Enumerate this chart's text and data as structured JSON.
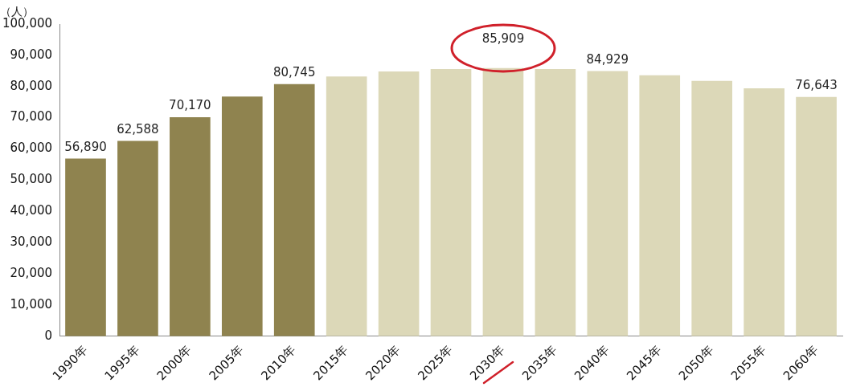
{
  "chart_data": {
    "type": "bar",
    "ylabel": "（人）",
    "categories": [
      "1990年",
      "1995年",
      "2000年",
      "2005年",
      "2010年",
      "2015年",
      "2020年",
      "2025年",
      "2030年",
      "2035年",
      "2040年",
      "2045年",
      "2050年",
      "2055年",
      "2060年"
    ],
    "values": [
      56890,
      62588,
      70170,
      76800,
      80745,
      83200,
      84800,
      85600,
      85909,
      85600,
      84929,
      83600,
      81800,
      79400,
      76643
    ],
    "colors": [
      "#8f834f",
      "#8f834f",
      "#8f834f",
      "#8f834f",
      "#8f834f",
      "#dcd8b8",
      "#dcd8b8",
      "#dcd8b8",
      "#dcd8b8",
      "#dcd8b8",
      "#dcd8b8",
      "#dcd8b8",
      "#dcd8b8",
      "#dcd8b8",
      "#dcd8b8"
    ],
    "value_labels": [
      "56,890",
      "62,588",
      "70,170",
      null,
      "80,745",
      null,
      null,
      null,
      "85,909",
      null,
      "84,929",
      null,
      null,
      null,
      "76,643"
    ],
    "ylim": [
      0,
      100000
    ],
    "yticks": [
      0,
      {
        "value": 10000,
        "label": "10,000"
      },
      {
        "value": 20000,
        "label": "20,000"
      },
      {
        "value": 30000,
        "label": "30,000"
      },
      {
        "value": 40000,
        "label": "40,000"
      },
      {
        "value": 50000,
        "label": "50,000"
      },
      {
        "value": 60000,
        "label": "60,000"
      },
      {
        "value": 70000,
        "label": "70,000"
      },
      {
        "value": 80000,
        "label": "80,000"
      },
      {
        "value": 90000,
        "label": "90,000"
      },
      {
        "value": 100000,
        "label": "100,000"
      }
    ],
    "grid": false,
    "legend": false
  }
}
